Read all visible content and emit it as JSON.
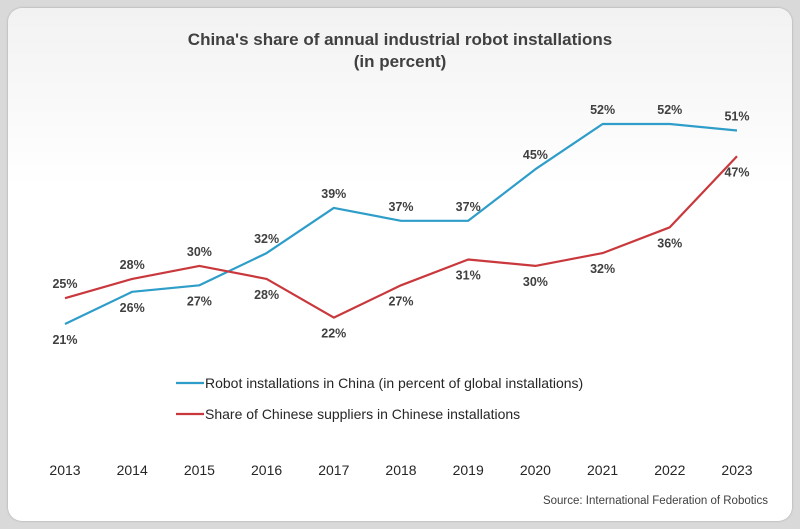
{
  "chart_data": {
    "type": "line",
    "title": "China's share of annual industrial robot installations",
    "subtitle": "(in percent)",
    "source": "Source: International Federation of Robotics",
    "categories": [
      "2013",
      "2014",
      "2015",
      "2016",
      "2017",
      "2018",
      "2019",
      "2020",
      "2021",
      "2022",
      "2023"
    ],
    "series": [
      {
        "name": "Robot installations in China (in percent of global installations)",
        "color": "#2e9dc9",
        "values": [
          21,
          26,
          27,
          32,
          39,
          37,
          37,
          45,
          52,
          52,
          51
        ],
        "labels": [
          "21%",
          "26%",
          "27%",
          "32%",
          "39%",
          "37%",
          "37%",
          "45%",
          "52%",
          "52%",
          "51%"
        ]
      },
      {
        "name": "Share of Chinese suppliers in Chinese installations",
        "color": "#c9383c",
        "values": [
          25,
          28,
          30,
          28,
          22,
          27,
          31,
          30,
          32,
          36,
          47
        ],
        "labels": [
          "25%",
          "28%",
          "30%",
          "28%",
          "22%",
          "27%",
          "31%",
          "30%",
          "32%",
          "36%",
          "47%"
        ]
      }
    ],
    "legend_position": "bottom-left",
    "grid": false,
    "y_axis_visible": false
  }
}
